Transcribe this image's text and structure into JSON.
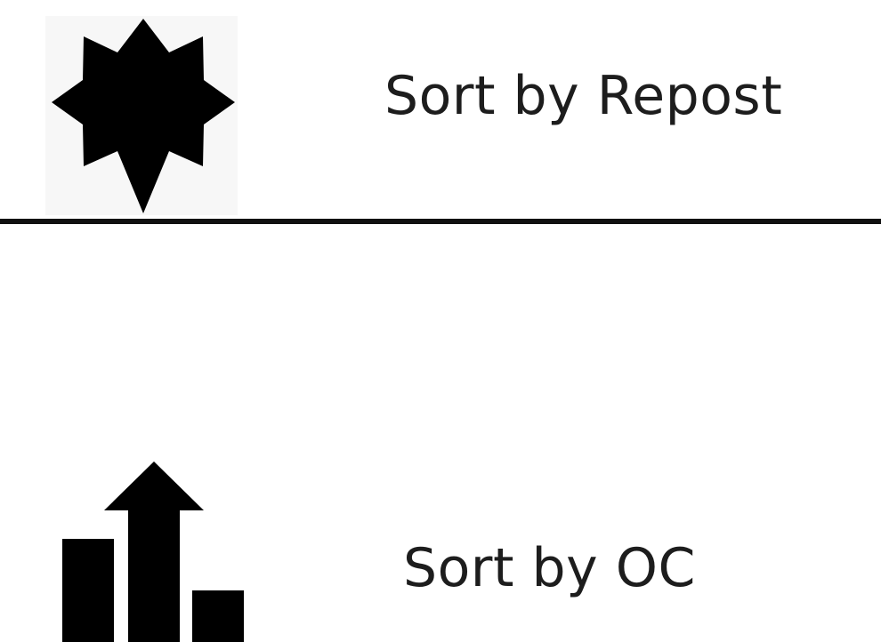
{
  "options": [
    {
      "label": "Sort by Repost",
      "icon": "star-badge-icon"
    },
    {
      "label": "Sort by OC",
      "icon": "trending-bars-icon"
    }
  ],
  "colors": {
    "background": "#ffffff",
    "icon_tile": "#f7f7f7",
    "ink": "#111111",
    "text": "#1d1d1d"
  }
}
